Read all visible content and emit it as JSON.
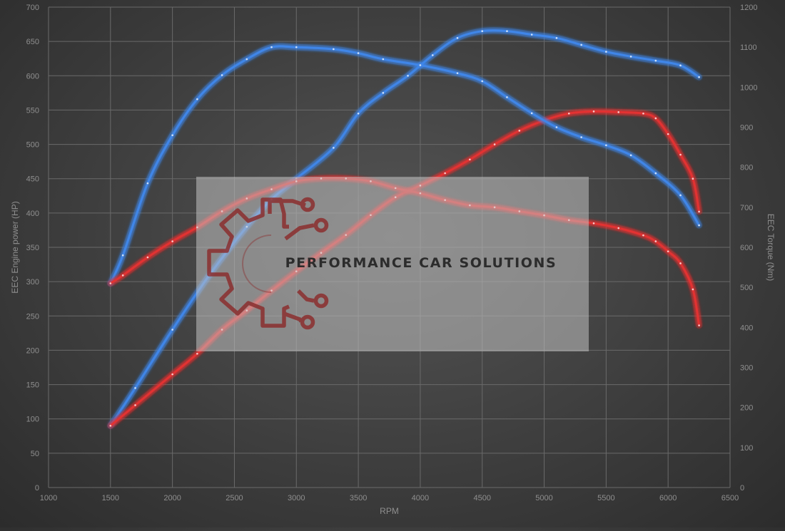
{
  "chart_data": {
    "type": "line",
    "xlabel": "RPM",
    "ylabel_left": "EEC Engine power (HP)",
    "ylabel_right": "EEC Torque (Nm)",
    "xlim": [
      1000,
      6500
    ],
    "ylim_left": [
      0,
      700
    ],
    "ylim_right": [
      0,
      1200
    ],
    "x_ticks": [
      1000,
      1500,
      2000,
      2500,
      3000,
      3500,
      4000,
      4500,
      5000,
      5500,
      6000,
      6500
    ],
    "y_ticks_left": [
      0,
      50,
      100,
      150,
      200,
      250,
      300,
      350,
      400,
      450,
      500,
      550,
      600,
      650,
      700
    ],
    "y_ticks_right": [
      0,
      100,
      200,
      300,
      400,
      500,
      600,
      700,
      800,
      900,
      1000,
      1100,
      1200
    ],
    "grid": true,
    "series": [
      {
        "axis": "left",
        "color": "#3f86e8",
        "points": [
          [
            1500,
            90
          ],
          [
            1700,
            145
          ],
          [
            2000,
            230
          ],
          [
            2300,
            310
          ],
          [
            2600,
            380
          ],
          [
            2800,
            420
          ],
          [
            3000,
            450
          ],
          [
            3300,
            495
          ],
          [
            3500,
            545
          ],
          [
            3700,
            575
          ],
          [
            3900,
            600
          ],
          [
            4100,
            630
          ],
          [
            4300,
            655
          ],
          [
            4500,
            665
          ],
          [
            4700,
            665
          ],
          [
            4900,
            660
          ],
          [
            5100,
            655
          ],
          [
            5300,
            645
          ],
          [
            5500,
            635
          ],
          [
            5700,
            628
          ],
          [
            5900,
            622
          ],
          [
            6100,
            615
          ],
          [
            6250,
            598
          ]
        ]
      },
      {
        "axis": "left",
        "color": "#e23131",
        "points": [
          [
            1500,
            90
          ],
          [
            1700,
            120
          ],
          [
            2000,
            165
          ],
          [
            2200,
            195
          ],
          [
            2400,
            230
          ],
          [
            2600,
            258
          ],
          [
            2800,
            287
          ],
          [
            3000,
            315
          ],
          [
            3200,
            342
          ],
          [
            3400,
            368
          ],
          [
            3600,
            397
          ],
          [
            3800,
            423
          ],
          [
            4000,
            440
          ],
          [
            4200,
            458
          ],
          [
            4400,
            478
          ],
          [
            4600,
            500
          ],
          [
            4800,
            520
          ],
          [
            5000,
            535
          ],
          [
            5200,
            545
          ],
          [
            5400,
            548
          ],
          [
            5600,
            547
          ],
          [
            5800,
            545
          ],
          [
            5900,
            538
          ],
          [
            6000,
            515
          ],
          [
            6100,
            485
          ],
          [
            6200,
            450
          ],
          [
            6250,
            402
          ]
        ]
      },
      {
        "axis": "right",
        "color": "#3f86e8",
        "points": [
          [
            1500,
            510
          ],
          [
            1600,
            580
          ],
          [
            1800,
            760
          ],
          [
            2000,
            880
          ],
          [
            2200,
            970
          ],
          [
            2400,
            1030
          ],
          [
            2600,
            1070
          ],
          [
            2800,
            1100
          ],
          [
            3000,
            1100
          ],
          [
            3300,
            1095
          ],
          [
            3500,
            1085
          ],
          [
            3700,
            1070
          ],
          [
            4000,
            1055
          ],
          [
            4300,
            1035
          ],
          [
            4500,
            1015
          ],
          [
            4700,
            975
          ],
          [
            4900,
            935
          ],
          [
            5100,
            900
          ],
          [
            5300,
            875
          ],
          [
            5500,
            855
          ],
          [
            5700,
            830
          ],
          [
            5900,
            785
          ],
          [
            6100,
            730
          ],
          [
            6250,
            655
          ]
        ]
      },
      {
        "axis": "right",
        "color": "#e23131",
        "points": [
          [
            1500,
            510
          ],
          [
            1600,
            530
          ],
          [
            1800,
            575
          ],
          [
            2000,
            615
          ],
          [
            2200,
            650
          ],
          [
            2400,
            690
          ],
          [
            2600,
            722
          ],
          [
            2800,
            745
          ],
          [
            3000,
            765
          ],
          [
            3200,
            772
          ],
          [
            3400,
            772
          ],
          [
            3600,
            765
          ],
          [
            3800,
            748
          ],
          [
            4000,
            735
          ],
          [
            4200,
            718
          ],
          [
            4400,
            705
          ],
          [
            4600,
            700
          ],
          [
            4800,
            690
          ],
          [
            5000,
            680
          ],
          [
            5200,
            668
          ],
          [
            5400,
            660
          ],
          [
            5600,
            648
          ],
          [
            5800,
            630
          ],
          [
            5900,
            615
          ],
          [
            6000,
            590
          ],
          [
            6100,
            560
          ],
          [
            6200,
            495
          ],
          [
            6250,
            405
          ]
        ]
      }
    ]
  },
  "watermark": {
    "brand_text": "PERFORMANCE CAR SOLUTIONS",
    "logo_icon": "gear-circuit-logo-icon",
    "logo_color": "#8b2f2f"
  }
}
